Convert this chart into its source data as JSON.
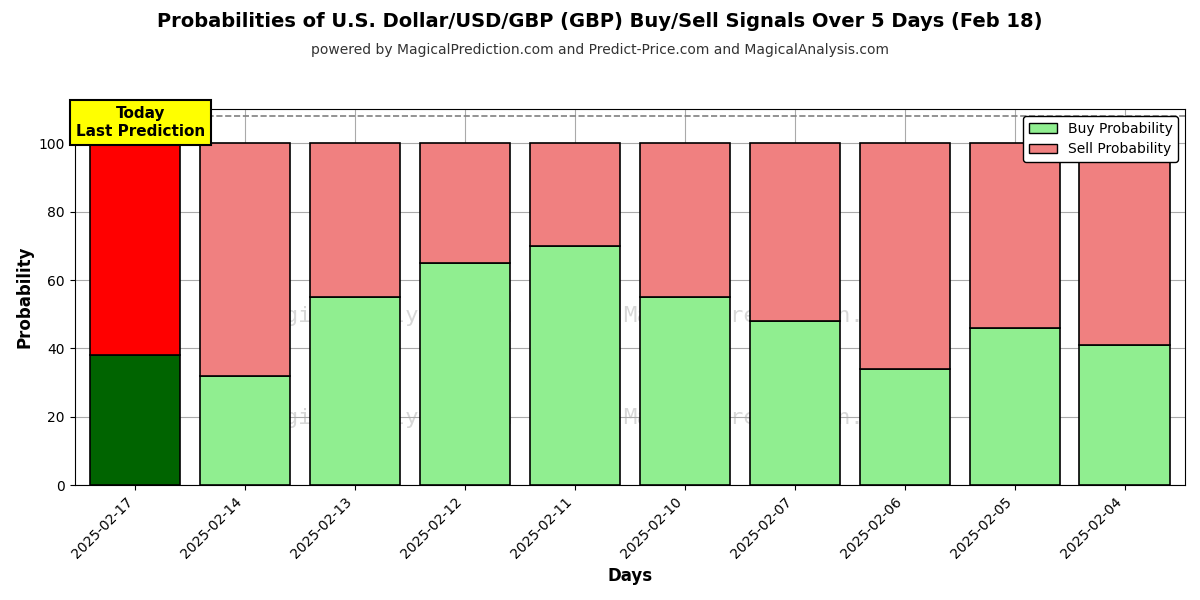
{
  "title": "Probabilities of U.S. Dollar/USD/GBP (GBP) Buy/Sell Signals Over 5 Days (Feb 18)",
  "subtitle": "powered by MagicalPrediction.com and Predict-Price.com and MagicalAnalysis.com",
  "xlabel": "Days",
  "ylabel": "Probability",
  "dates": [
    "2025-02-17",
    "2025-02-14",
    "2025-02-13",
    "2025-02-12",
    "2025-02-11",
    "2025-02-10",
    "2025-02-07",
    "2025-02-06",
    "2025-02-05",
    "2025-02-04"
  ],
  "buy_values": [
    38,
    32,
    55,
    65,
    70,
    55,
    48,
    34,
    46,
    41
  ],
  "sell_values": [
    62,
    68,
    45,
    35,
    30,
    45,
    52,
    66,
    54,
    59
  ],
  "today_bar_index": 0,
  "today_buy_color": "#006400",
  "today_sell_color": "#FF0000",
  "buy_color": "#90EE90",
  "sell_color": "#F08080",
  "today_annotation_text": "Today\nLast Prediction",
  "today_annotation_bg": "#FFFF00",
  "legend_buy_label": "Buy Probability",
  "legend_sell_label": "Sell Probability",
  "ylim": [
    0,
    110
  ],
  "yticks": [
    0,
    20,
    40,
    60,
    80,
    100
  ],
  "dashed_line_y": 108,
  "bar_edge_color": "#000000",
  "bar_linewidth": 1.2,
  "background_color": "#ffffff",
  "grid_color": "#aaaaaa"
}
